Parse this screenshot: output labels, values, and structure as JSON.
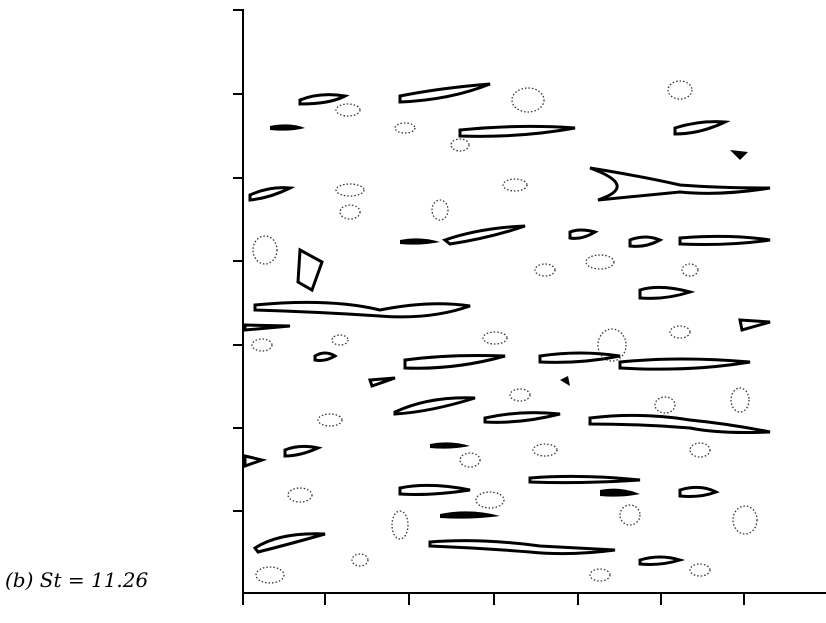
{
  "caption": "(b) St = 11.26"
}
